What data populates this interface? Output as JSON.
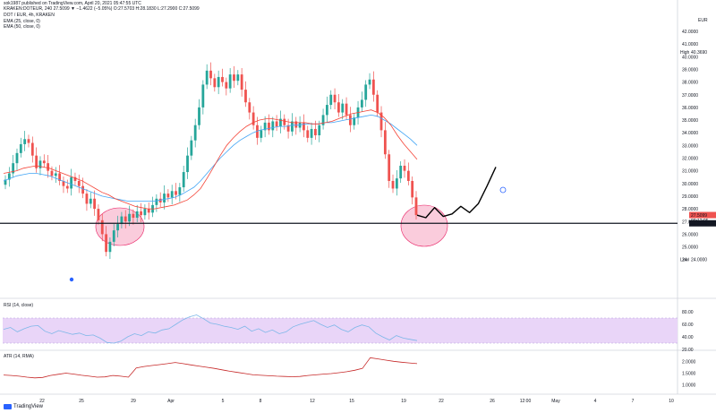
{
  "header": {
    "published_line": "sok1987 published on TradingView.com, April 20, 2021 05:47:55 UTC",
    "ohlc_line": "KRAKEN:DOTEUR, 240  27.5099 ▼ −1.4622 (−5.05%) O:27.5703 H:28.1830 L:27.2900 C:27.5099",
    "title": "DOT / EUR, 4h, KRAKEN",
    "indicators": [
      "EMA (25, close, 0)",
      "EMA (50, close, 0)"
    ]
  },
  "colors": {
    "up": "#26a69a",
    "down": "#ef5350",
    "ema25": "#f44336",
    "ema50": "#42a5f5",
    "rsi_line": "#7cb7e8",
    "rsi_band": "#e9d5f8",
    "atr_line": "#c62828",
    "circle_fill": "#f48fb1",
    "price_label": "#ef5350"
  },
  "footer": {
    "logo_text": "TradingView"
  },
  "chart_data": [
    {
      "type": "candlestick",
      "title": "DOT / EUR, 4h, KRAKEN",
      "currency_label": "EUR",
      "ylim": [
        22,
        42
      ],
      "y_ticks": [
        "24.0000",
        "25.0000",
        "26.0000",
        "27.0000",
        "28.0000",
        "29.0000",
        "30.0000",
        "31.0000",
        "32.0000",
        "33.0000",
        "34.0000",
        "35.0000",
        "36.0000",
        "37.0000",
        "38.0000",
        "39.0000",
        "40.0000",
        "41.0000",
        "42.0000"
      ],
      "x_labels": [
        "22",
        "25",
        "29",
        "Apr",
        "5",
        "8",
        "12",
        "15",
        "19",
        "22",
        "26",
        "12:00",
        "May",
        "4",
        "7",
        "10"
      ],
      "labels": {
        "high": {
          "text": "High",
          "value": "40.3690"
        },
        "low": {
          "text": "Low",
          "value": "24.0000"
        },
        "last": {
          "value": "27.5099",
          "time": "00:12:05"
        },
        "support": {
          "value": "26.8576"
        }
      },
      "support_line": 26.8576,
      "series": [
        {
          "name": "OHLC",
          "closes": [
            30.3,
            30.8,
            31.6,
            32.4,
            33.1,
            33.5,
            33.2,
            32.2,
            31.2,
            31.8,
            31.6,
            31.0,
            30.6,
            30.8,
            30.2,
            29.8,
            29.6,
            30.5,
            30.2,
            29.8,
            29.2,
            28.4,
            28.8,
            28.0,
            27.1,
            26.0,
            24.6,
            25.4,
            26.3,
            26.8,
            27.4,
            27.0,
            27.6,
            27.3,
            27.8,
            27.5,
            28.0,
            27.7,
            28.3,
            28.8,
            28.5,
            29.2,
            28.9,
            29.4,
            29.1,
            29.7,
            30.9,
            32.2,
            33.4,
            34.6,
            36.0,
            37.8,
            38.9,
            38.3,
            37.6,
            38.4,
            38.0,
            37.5,
            38.6,
            38.1,
            38.6,
            37.4,
            36.4,
            35.6,
            34.6,
            33.6,
            34.2,
            34.8,
            34.2,
            34.9,
            34.5,
            35.1,
            34.6,
            34.1,
            34.9,
            34.4,
            34.8,
            34.2,
            33.6,
            34.3,
            33.8,
            34.6,
            35.4,
            36.2,
            37.0,
            36.4,
            35.6,
            36.3,
            35.4,
            34.6,
            35.2,
            36.0,
            36.6,
            37.8,
            38.2,
            37.0,
            35.6,
            34.2,
            32.3,
            30.2,
            29.6,
            30.4,
            31.4,
            31.0,
            30.2,
            28.9,
            27.51
          ]
        },
        {
          "name": "EMA (25, close, 0)",
          "values": [
            30.8,
            30.9,
            31.0,
            31.2,
            31.3,
            31.4,
            31.3,
            31.2,
            31.0,
            30.8,
            30.6,
            30.4,
            30.2,
            29.9,
            29.6,
            29.3,
            29.1,
            28.8,
            28.6,
            28.4,
            28.2,
            28.1,
            28.0,
            28.0,
            28.1,
            28.2,
            28.3,
            28.5,
            28.7,
            29.1,
            29.6,
            30.4,
            31.3,
            32.2,
            33.0,
            33.6,
            34.1,
            34.5,
            34.8,
            35.0,
            35.1,
            35.1,
            35.0,
            34.9,
            34.8,
            34.8,
            34.8,
            34.7,
            34.7,
            34.8,
            34.9,
            35.1,
            35.3,
            35.5,
            35.6,
            35.7,
            35.8,
            35.6,
            35.2,
            34.6,
            33.8,
            33.1,
            32.5,
            31.9
          ]
        },
        {
          "name": "EMA (50, close, 0)",
          "values": [
            30.2,
            30.4,
            30.6,
            30.7,
            30.8,
            30.8,
            30.7,
            30.6,
            30.4,
            30.2,
            30.0,
            29.8,
            29.6,
            29.4,
            29.2,
            29.0,
            28.9,
            28.8,
            28.7,
            28.6,
            28.6,
            28.6,
            28.6,
            28.6,
            28.7,
            28.8,
            28.9,
            29.1,
            29.4,
            29.7,
            30.2,
            30.8,
            31.4,
            32.0,
            32.5,
            33.0,
            33.4,
            33.7,
            34.0,
            34.2,
            34.3,
            34.4,
            34.5,
            34.5,
            34.6,
            34.6,
            34.7,
            34.7,
            34.7,
            34.8,
            34.8,
            34.9,
            35.0,
            35.1,
            35.2,
            35.3,
            35.4,
            35.3,
            35.0,
            34.7,
            34.3,
            33.9,
            33.5,
            33.0
          ]
        },
        {
          "name": "drawn path",
          "values": [
            27.5,
            27.3,
            28.1,
            27.4,
            27.6,
            28.2,
            27.7,
            28.4,
            29.8,
            31.3
          ]
        }
      ]
    },
    {
      "type": "line",
      "title": "RSI (14, close)",
      "ylim": [
        20,
        80
      ],
      "y_ticks": [
        "20.00",
        "40.00",
        "60.00",
        "80.00"
      ],
      "band": [
        30,
        70
      ],
      "series": [
        {
          "name": "RSI (14, close)",
          "values": [
            52,
            55,
            48,
            53,
            57,
            58,
            49,
            45,
            50,
            47,
            44,
            46,
            42,
            43,
            38,
            31,
            30,
            33,
            40,
            45,
            42,
            48,
            46,
            51,
            53,
            60,
            67,
            72,
            75,
            69,
            62,
            60,
            57,
            55,
            52,
            57,
            49,
            53,
            47,
            51,
            45,
            48,
            56,
            60,
            63,
            66,
            60,
            55,
            59,
            52,
            48,
            55,
            59,
            56,
            46,
            40,
            35,
            42,
            38,
            36,
            34
          ]
        }
      ]
    },
    {
      "type": "line",
      "title": "ATR (14, RMA)",
      "ylim": [
        0.8,
        2.2
      ],
      "y_ticks": [
        "1.0000",
        "1.5000",
        "2.0000"
      ],
      "series": [
        {
          "name": "ATR (14, RMA)",
          "values": [
            1.42,
            1.4,
            1.37,
            1.33,
            1.3,
            1.32,
            1.4,
            1.45,
            1.5,
            1.46,
            1.41,
            1.37,
            1.33,
            1.34,
            1.4,
            1.37,
            1.33,
            1.72,
            1.78,
            1.82,
            1.86,
            1.9,
            1.95,
            1.9,
            1.85,
            1.8,
            1.75,
            1.7,
            1.64,
            1.58,
            1.53,
            1.48,
            1.43,
            1.41,
            1.39,
            1.37,
            1.36,
            1.35,
            1.36,
            1.4,
            1.43,
            1.46,
            1.48,
            1.52,
            1.56,
            1.62,
            1.7,
            2.15,
            2.1,
            2.05,
            2.0,
            1.96,
            1.93,
            1.9
          ]
        }
      ]
    }
  ]
}
